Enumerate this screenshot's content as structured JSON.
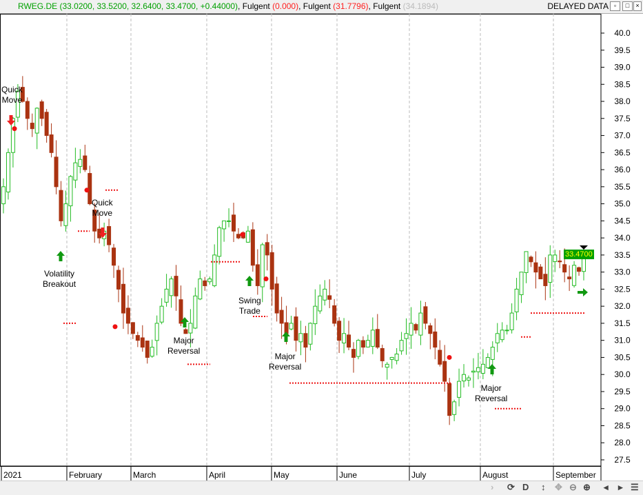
{
  "header": {
    "symbol": "RWEG.DE",
    "ohlc": "(33.0200, 33.5200, 32.6400, 33.4700, +0.44000)",
    "ind1_name": "Fulgent",
    "ind1_val": "(0.000)",
    "ind2_name": "Fulgent",
    "ind2_val": "(31.7796)",
    "ind3_name": "Fulgent",
    "ind3_val": "(34.1894)",
    "status": "DELAYED DATA"
  },
  "last_price": "33.4700",
  "annotations": [
    {
      "text": "Quick\nMove"
    },
    {
      "text": "Volatility\nBreakout"
    },
    {
      "text": "Quick\nMove"
    },
    {
      "text": "Major\nReversal"
    },
    {
      "text": "Swing\nTrade"
    },
    {
      "text": "Major\nReversal"
    },
    {
      "text": "Major\nReversal"
    }
  ],
  "bottom": {
    "period": "D"
  },
  "chart_data": {
    "type": "candlestick",
    "ylim": [
      27.25,
      40.25
    ],
    "yticks": [
      27.5,
      28.0,
      28.5,
      29.0,
      29.5,
      30.0,
      30.5,
      31.0,
      31.5,
      32.0,
      32.5,
      33.0,
      33.5,
      34.0,
      34.5,
      35.0,
      35.5,
      36.0,
      36.5,
      37.0,
      37.5,
      38.0,
      38.5,
      39.0,
      39.5,
      40.0
    ],
    "xticks": [
      "2021",
      "February",
      "March",
      "April",
      "May",
      "June",
      "July",
      "August",
      "September"
    ],
    "grid": "vertical dashed at months",
    "colors": {
      "up": "#22bb22",
      "down": "#aa3311",
      "stop": "#ee1111",
      "buy": "#119911",
      "sell": "#ee2222"
    },
    "close": [
      35.5,
      36.5,
      37.5,
      38.3,
      38.0,
      37.5,
      37.2,
      37.8,
      37.5,
      37.0,
      36.5,
      35.5,
      34.5,
      35.0,
      35.8,
      36.2,
      36.3,
      36.0,
      35.0,
      34.2,
      34.0,
      34.2,
      33.8,
      33.2,
      32.5,
      31.8,
      31.5,
      31.2,
      31.0,
      30.8,
      30.5,
      30.8,
      31.5,
      32.0,
      32.5,
      32.8,
      32.3,
      31.5,
      31.2,
      31.5,
      32.3,
      32.8,
      32.6,
      32.8,
      33.5,
      34.3,
      34.5,
      34.5,
      34.2,
      34.0,
      34.0,
      34.2,
      33.2,
      32.6,
      33.8,
      33.5,
      32.5,
      31.8,
      31.5,
      31.2,
      31.5,
      31.0,
      31.2,
      30.8,
      31.5,
      32.0,
      32.3,
      32.5,
      32.2,
      31.5,
      31.0,
      31.2,
      30.8,
      30.5,
      31.0,
      30.8,
      31.0,
      31.3,
      30.8,
      30.4,
      30.3,
      30.5,
      30.6,
      31.0,
      31.2,
      31.5,
      31.3,
      31.8,
      31.5,
      31.2,
      30.8,
      30.3,
      29.8,
      28.8,
      29.2,
      29.8,
      30.0,
      29.9,
      30.1,
      30.2,
      30.3,
      30.5,
      30.8,
      31.2,
      31.3,
      31.3,
      31.8,
      32.5,
      33.0,
      33.6,
      33.3,
      33.0,
      32.8,
      32.6,
      33.5,
      33.5,
      33.3,
      33.0,
      32.8,
      33.2,
      33.02,
      33.47
    ]
  }
}
